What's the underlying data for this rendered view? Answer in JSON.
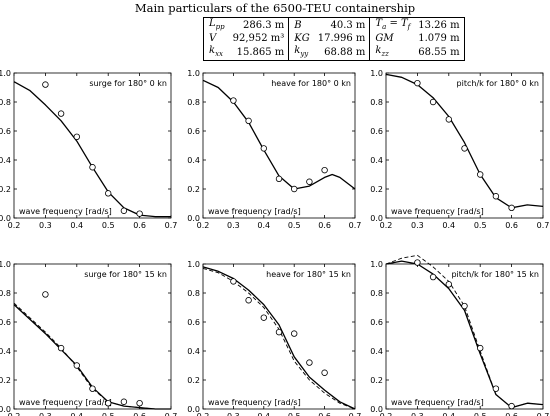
{
  "header": {
    "title": "Main particulars of the 6500-TEU containership",
    "rows": [
      [
        {
          "sym": "L",
          "sub": "pp",
          "val": "286.3 m"
        },
        {
          "sym": "B",
          "sub": "",
          "val": "40.3 m"
        },
        {
          "sym": "T",
          "sub": "a",
          "extra": " = T",
          "sub2": "f",
          "val": "13.26 m"
        }
      ],
      [
        {
          "sym": "V",
          "sub": "",
          "val": "92,952 m³"
        },
        {
          "sym": "KG",
          "sub": "",
          "val": "17.996 m"
        },
        {
          "sym": "GM",
          "sub": "",
          "val": "1.079 m"
        }
      ],
      [
        {
          "sym": "k",
          "sub": "xx",
          "val": "15.865 m"
        },
        {
          "sym": "k",
          "sub": "yy",
          "val": "68.88 m"
        },
        {
          "sym": "k",
          "sub": "zz",
          "val": "68.55 m"
        }
      ]
    ]
  },
  "chart_data": [
    {
      "type": "line",
      "label": "surge  for 180° 0 kn",
      "xlabel": "wave frequency [rad/s]",
      "xlim": [
        0.2,
        0.7
      ],
      "ylim": [
        0,
        1
      ],
      "xticks": [
        0.2,
        0.3,
        0.4,
        0.5,
        0.6,
        0.7
      ],
      "yticks": [
        0,
        0.2,
        0.4,
        0.6,
        0.8,
        1.0
      ],
      "series": [
        {
          "style": "solid",
          "x": [
            0.2,
            0.25,
            0.3,
            0.35,
            0.4,
            0.45,
            0.5,
            0.55,
            0.6,
            0.65,
            0.7
          ],
          "y": [
            0.94,
            0.88,
            0.78,
            0.67,
            0.53,
            0.35,
            0.18,
            0.07,
            0.02,
            0.01,
            0.01
          ]
        }
      ],
      "points": {
        "x": [
          0.3,
          0.35,
          0.4,
          0.45,
          0.5,
          0.55,
          0.6
        ],
        "y": [
          0.92,
          0.72,
          0.56,
          0.35,
          0.17,
          0.05,
          0.03
        ]
      }
    },
    {
      "type": "line",
      "label": "heave  for 180° 0 kn",
      "xlabel": "wave frequency [rad/s]",
      "xlim": [
        0.2,
        0.7
      ],
      "ylim": [
        0,
        1
      ],
      "xticks": [
        0.2,
        0.3,
        0.4,
        0.5,
        0.6,
        0.7
      ],
      "yticks": [
        0,
        0.2,
        0.4,
        0.6,
        0.8,
        1.0
      ],
      "series": [
        {
          "style": "solid",
          "x": [
            0.2,
            0.25,
            0.3,
            0.35,
            0.4,
            0.45,
            0.5,
            0.55,
            0.6,
            0.625,
            0.65,
            0.7
          ],
          "y": [
            0.95,
            0.9,
            0.8,
            0.66,
            0.47,
            0.29,
            0.2,
            0.22,
            0.28,
            0.3,
            0.28,
            0.2
          ]
        }
      ],
      "points": {
        "x": [
          0.3,
          0.35,
          0.4,
          0.45,
          0.5,
          0.55,
          0.6
        ],
        "y": [
          0.81,
          0.67,
          0.48,
          0.27,
          0.2,
          0.25,
          0.33
        ]
      }
    },
    {
      "type": "line",
      "label": "pitch/k  for 180° 0 kn",
      "xlabel": "wave frequency [rad/s]",
      "xlim": [
        0.2,
        0.7
      ],
      "ylim": [
        0,
        1
      ],
      "xticks": [
        0.2,
        0.3,
        0.4,
        0.5,
        0.6,
        0.7
      ],
      "yticks": [
        0,
        0.2,
        0.4,
        0.6,
        0.8,
        1.0
      ],
      "series": [
        {
          "style": "solid",
          "x": [
            0.2,
            0.25,
            0.3,
            0.35,
            0.4,
            0.45,
            0.5,
            0.55,
            0.6,
            0.65,
            0.7
          ],
          "y": [
            0.99,
            0.97,
            0.92,
            0.83,
            0.7,
            0.52,
            0.3,
            0.14,
            0.07,
            0.09,
            0.08
          ]
        }
      ],
      "points": {
        "x": [
          0.3,
          0.35,
          0.4,
          0.45,
          0.5,
          0.55,
          0.6
        ],
        "y": [
          0.93,
          0.8,
          0.68,
          0.48,
          0.3,
          0.15,
          0.07
        ]
      }
    },
    {
      "type": "line",
      "label": "surge  for 180° 15 kn",
      "xlabel": "wave frequency [rad/s]",
      "xlim": [
        0.2,
        0.7
      ],
      "ylim": [
        0,
        1
      ],
      "xticks": [
        0.2,
        0.3,
        0.4,
        0.5,
        0.6,
        0.7
      ],
      "yticks": [
        0,
        0.2,
        0.4,
        0.6,
        0.8,
        1.0
      ],
      "series": [
        {
          "style": "solid",
          "x": [
            0.2,
            0.25,
            0.3,
            0.35,
            0.4,
            0.45,
            0.5,
            0.55,
            0.6,
            0.65,
            0.7
          ],
          "y": [
            0.72,
            0.62,
            0.52,
            0.41,
            0.3,
            0.15,
            0.05,
            0.02,
            0.01,
            0.0,
            0.0
          ]
        },
        {
          "style": "dashed",
          "x": [
            0.2,
            0.25,
            0.3,
            0.35,
            0.4,
            0.45,
            0.5,
            0.55,
            0.6,
            0.65,
            0.7
          ],
          "y": [
            0.73,
            0.63,
            0.53,
            0.42,
            0.29,
            0.14,
            0.05,
            0.02,
            0.01,
            0.0,
            0.0
          ]
        }
      ],
      "points": {
        "x": [
          0.3,
          0.35,
          0.4,
          0.45,
          0.5,
          0.55,
          0.6
        ],
        "y": [
          0.79,
          0.42,
          0.3,
          0.14,
          0.04,
          0.05,
          0.04
        ]
      }
    },
    {
      "type": "line",
      "label": "heave  for 180° 15 kn",
      "xlabel": "wave frequency [rad/s]",
      "xlim": [
        0.2,
        0.7
      ],
      "ylim": [
        0,
        1
      ],
      "xticks": [
        0.2,
        0.3,
        0.4,
        0.5,
        0.6,
        0.7
      ],
      "yticks": [
        0,
        0.2,
        0.4,
        0.6,
        0.8,
        1.0
      ],
      "series": [
        {
          "style": "solid",
          "x": [
            0.2,
            0.25,
            0.3,
            0.35,
            0.4,
            0.45,
            0.5,
            0.55,
            0.6,
            0.65,
            0.7
          ],
          "y": [
            0.98,
            0.95,
            0.9,
            0.82,
            0.72,
            0.58,
            0.36,
            0.22,
            0.13,
            0.05,
            0.0
          ]
        },
        {
          "style": "dashed",
          "x": [
            0.2,
            0.25,
            0.3,
            0.35,
            0.4,
            0.45,
            0.5,
            0.55,
            0.6,
            0.65,
            0.7
          ],
          "y": [
            0.97,
            0.94,
            0.88,
            0.8,
            0.7,
            0.55,
            0.33,
            0.2,
            0.11,
            0.04,
            0.0
          ]
        }
      ],
      "points": {
        "x": [
          0.3,
          0.35,
          0.4,
          0.45,
          0.5,
          0.55,
          0.6
        ],
        "y": [
          0.88,
          0.75,
          0.63,
          0.53,
          0.52,
          0.32,
          0.25
        ]
      }
    },
    {
      "type": "line",
      "label": "pitch/k  for 180° 15 kn",
      "xlabel": "wave frequency [rad/s]",
      "xlim": [
        0.2,
        0.7
      ],
      "ylim": [
        0,
        1
      ],
      "xticks": [
        0.2,
        0.3,
        0.4,
        0.5,
        0.6,
        0.7
      ],
      "yticks": [
        0,
        0.2,
        0.4,
        0.6,
        0.8,
        1.0
      ],
      "series": [
        {
          "style": "solid",
          "x": [
            0.2,
            0.25,
            0.3,
            0.35,
            0.4,
            0.45,
            0.5,
            0.55,
            0.6,
            0.65,
            0.7
          ],
          "y": [
            1.0,
            1.02,
            1.0,
            0.93,
            0.83,
            0.68,
            0.38,
            0.1,
            0.01,
            0.04,
            0.03
          ]
        },
        {
          "style": "dashed",
          "x": [
            0.2,
            0.25,
            0.3,
            0.35,
            0.4,
            0.45,
            0.5,
            0.55,
            0.6,
            0.65,
            0.7
          ],
          "y": [
            1.0,
            1.04,
            1.06,
            0.98,
            0.88,
            0.71,
            0.4,
            0.1,
            0.01,
            0.04,
            0.03
          ]
        }
      ],
      "points": {
        "x": [
          0.3,
          0.35,
          0.4,
          0.45,
          0.5,
          0.55,
          0.6
        ],
        "y": [
          1.01,
          0.91,
          0.86,
          0.71,
          0.42,
          0.14,
          0.02
        ]
      }
    }
  ]
}
